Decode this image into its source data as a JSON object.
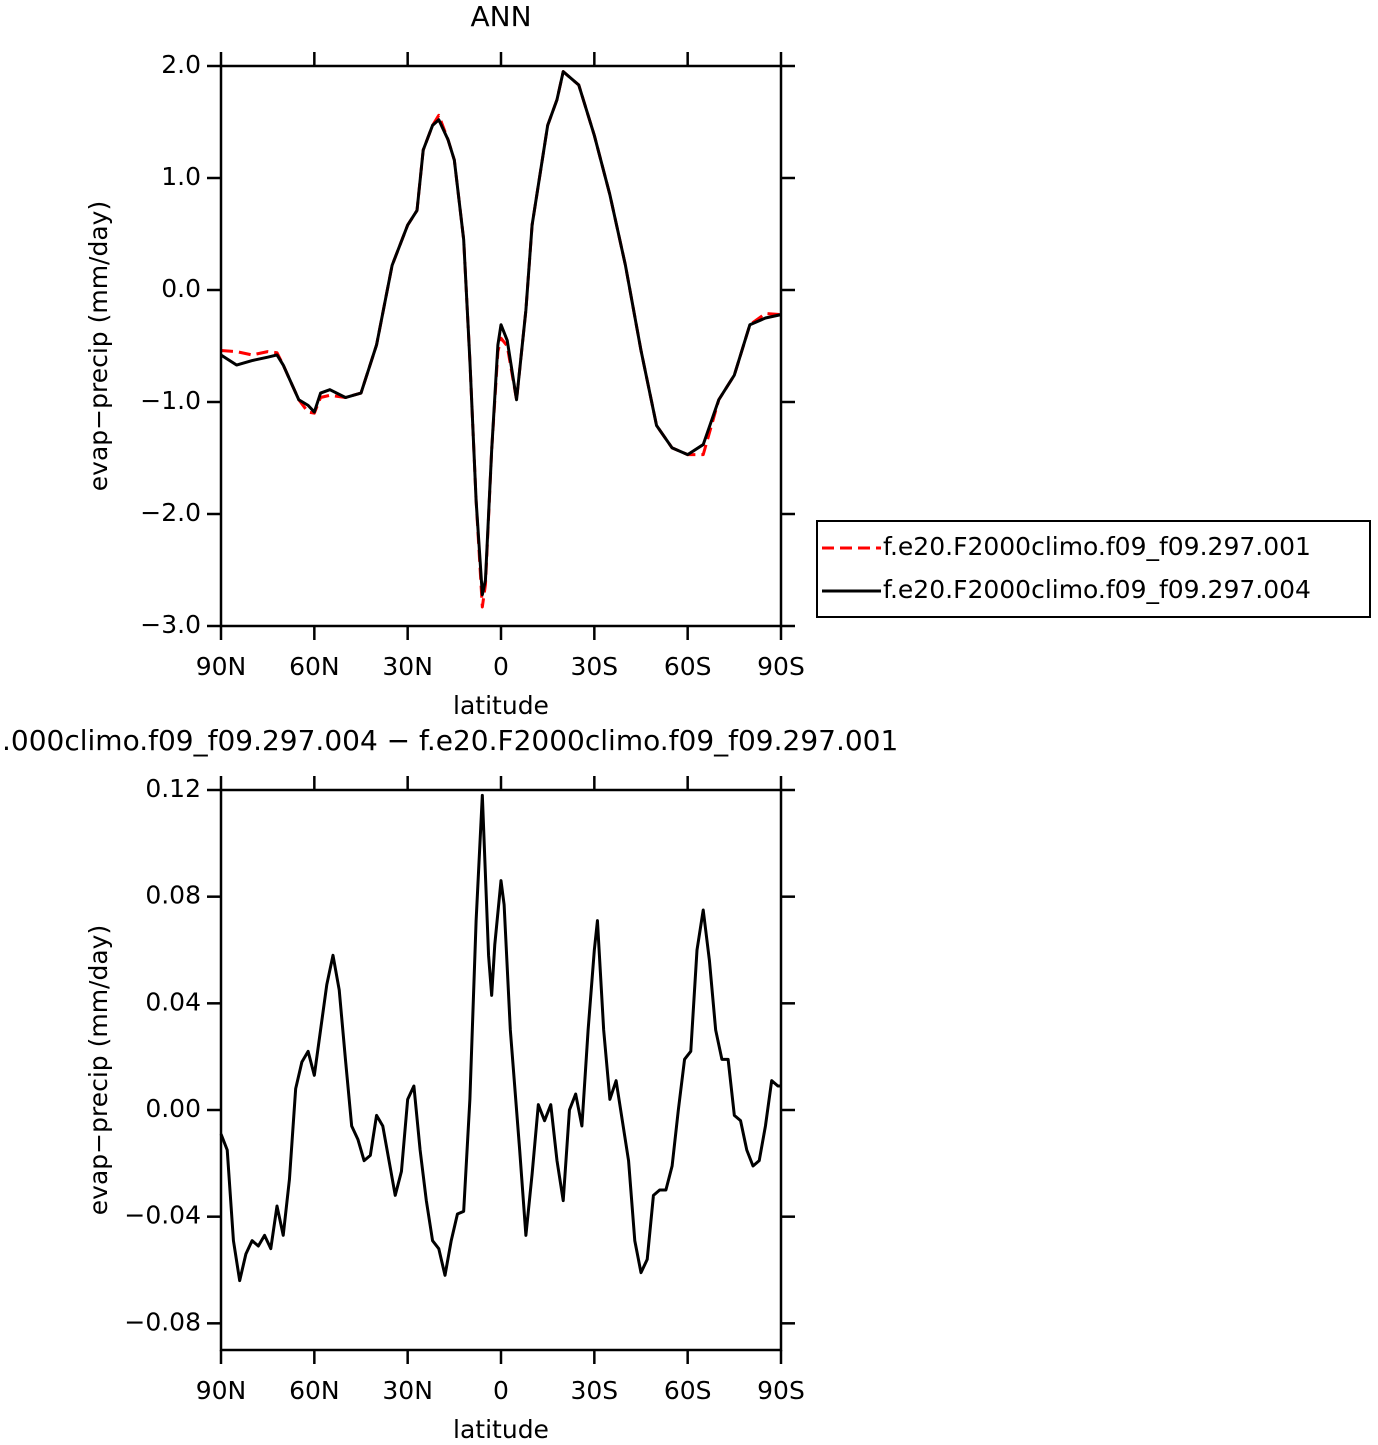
{
  "chart_data": [
    {
      "type": "line",
      "title": "ANN",
      "xlabel": "latitude",
      "ylabel": "evap−precip (mm/day)",
      "x": [
        90,
        85,
        80,
        75,
        72,
        70,
        65,
        62,
        60,
        58,
        55,
        50,
        45,
        40,
        35,
        30,
        27,
        25,
        22,
        20,
        17,
        15,
        12,
        10,
        8,
        6,
        5,
        3,
        1,
        0,
        -2,
        -5,
        -8,
        -10,
        -15,
        -18,
        -20,
        -25,
        -30,
        -35,
        -40,
        -45,
        -50,
        -55,
        -60,
        -65,
        -70,
        -75,
        -80,
        -85,
        -90
      ],
      "series": [
        {
          "name": "f.e20.F2000climo.f09_f09.297.001",
          "color": "#ff0000",
          "linestyle": "dashed",
          "values": [
            -0.54,
            -0.55,
            -0.58,
            -0.55,
            -0.56,
            -0.67,
            -0.98,
            -1.09,
            -1.1,
            -0.96,
            -0.94,
            -0.96,
            -0.92,
            -0.49,
            0.22,
            0.58,
            0.71,
            1.25,
            1.47,
            1.56,
            1.34,
            1.16,
            0.45,
            -0.63,
            -1.88,
            -2.83,
            -2.63,
            -1.43,
            -0.55,
            -0.43,
            -0.5,
            -0.98,
            -0.18,
            0.58,
            1.47,
            1.7,
            1.95,
            1.83,
            1.38,
            0.85,
            0.22,
            -0.54,
            -1.21,
            -1.41,
            -1.47,
            -1.47,
            -0.98,
            -0.76,
            -0.31,
            -0.21,
            -0.22
          ]
        },
        {
          "name": "f.e20.F2000climo.f09_f09.297.004",
          "color": "#000000",
          "linestyle": "solid",
          "values": [
            -0.58,
            -0.67,
            -0.63,
            -0.6,
            -0.58,
            -0.67,
            -0.98,
            -1.03,
            -1.09,
            -0.92,
            -0.89,
            -0.96,
            -0.92,
            -0.49,
            0.22,
            0.58,
            0.71,
            1.25,
            1.47,
            1.52,
            1.34,
            1.16,
            0.45,
            -0.63,
            -1.88,
            -2.72,
            -2.59,
            -1.43,
            -0.49,
            -0.31,
            -0.45,
            -0.98,
            -0.18,
            0.58,
            1.47,
            1.7,
            1.95,
            1.83,
            1.38,
            0.85,
            0.22,
            -0.54,
            -1.21,
            -1.41,
            -1.47,
            -1.38,
            -0.98,
            -0.76,
            -0.31,
            -0.25,
            -0.22
          ]
        }
      ],
      "xlim": [
        90,
        -90
      ],
      "xticks": [
        {
          "value": 90,
          "label": "90N"
        },
        {
          "value": 60,
          "label": "60N"
        },
        {
          "value": 30,
          "label": "30N"
        },
        0,
        {
          "value": -30,
          "label": "30S"
        },
        {
          "value": -60,
          "label": "60S"
        },
        {
          "value": -90,
          "label": "90S"
        }
      ],
      "ylim": [
        -3,
        2
      ],
      "yticks": [
        {
          "value": 2,
          "label": "2.0"
        },
        {
          "value": 1,
          "label": "1.0"
        },
        {
          "value": 0,
          "label": "0.0"
        },
        {
          "value": -1,
          "label": "−1.0"
        },
        {
          "value": -2,
          "label": "−2.0"
        },
        {
          "value": -3,
          "label": "−3.0"
        }
      ],
      "grid": false,
      "legend": true
    },
    {
      "type": "line",
      "title": ".000climo.f09_f09.297.004 − f.e20.F2000climo.f09_f09.297.001",
      "xlabel": "latitude",
      "ylabel": "evap−precip (mm/day)",
      "x": [
        90,
        88,
        86,
        84,
        82,
        80,
        78,
        76,
        74,
        72,
        70,
        68,
        66,
        64,
        62,
        60,
        58,
        56,
        54,
        52,
        50,
        48,
        46,
        44,
        42,
        40,
        38,
        36,
        34,
        32,
        30,
        28,
        26,
        24,
        22,
        20,
        18,
        16,
        14,
        12,
        10,
        8,
        6,
        4,
        3,
        2,
        0,
        -1,
        -3,
        -6,
        -8,
        -10,
        -12,
        -14,
        -16,
        -18,
        -20,
        -22,
        -24,
        -26,
        -28,
        -30,
        -31,
        -33,
        -35,
        -37,
        -39,
        -41,
        -43,
        -45,
        -47,
        -49,
        -51,
        -53,
        -55,
        -57,
        -59,
        -61,
        -63,
        -65,
        -67,
        -69,
        -71,
        -73,
        -75,
        -77,
        -79,
        -81,
        -83,
        -85,
        -87,
        -89,
        -90
      ],
      "series": [
        {
          "color": "#000000",
          "linestyle": "solid",
          "values": [
            -0.009,
            -0.015,
            -0.049,
            -0.064,
            -0.054,
            -0.049,
            -0.051,
            -0.047,
            -0.052,
            -0.036,
            -0.047,
            -0.026,
            0.008,
            0.018,
            0.022,
            0.013,
            0.03,
            0.047,
            0.058,
            0.045,
            0.019,
            -0.006,
            -0.011,
            -0.019,
            -0.017,
            -0.002,
            -0.006,
            -0.019,
            -0.032,
            -0.023,
            0.004,
            0.009,
            -0.015,
            -0.034,
            -0.049,
            -0.052,
            -0.062,
            -0.049,
            -0.039,
            -0.038,
            0.004,
            0.071,
            0.118,
            0.058,
            0.043,
            0.062,
            0.086,
            0.077,
            0.03,
            -0.015,
            -0.047,
            -0.024,
            0.002,
            -0.004,
            0.002,
            -0.019,
            -0.034,
            0.0,
            0.006,
            -0.006,
            0.03,
            0.06,
            0.071,
            0.03,
            0.004,
            0.011,
            -0.004,
            -0.019,
            -0.049,
            -0.061,
            -0.056,
            -0.032,
            -0.03,
            -0.03,
            -0.021,
            0.0,
            0.019,
            0.022,
            0.06,
            0.075,
            0.056,
            0.03,
            0.019,
            0.019,
            -0.002,
            -0.004,
            -0.015,
            -0.021,
            -0.019,
            -0.006,
            0.011,
            0.009,
            0.009
          ]
        }
      ],
      "xlim": [
        90,
        -90
      ],
      "xticks": [
        {
          "value": 90,
          "label": "90N"
        },
        {
          "value": 60,
          "label": "60N"
        },
        {
          "value": 30,
          "label": "30N"
        },
        0,
        {
          "value": -30,
          "label": "30S"
        },
        {
          "value": -60,
          "label": "60S"
        },
        {
          "value": -90,
          "label": "90S"
        }
      ],
      "ylim": [
        -0.09,
        0.12
      ],
      "yticks": [
        0.12,
        0.08,
        0.04,
        {
          "value": 0,
          "label": "0.00"
        },
        {
          "value": -0.04,
          "label": "−0.04"
        },
        {
          "value": -0.08,
          "label": "−0.08"
        }
      ],
      "grid": false,
      "legend": false
    }
  ]
}
